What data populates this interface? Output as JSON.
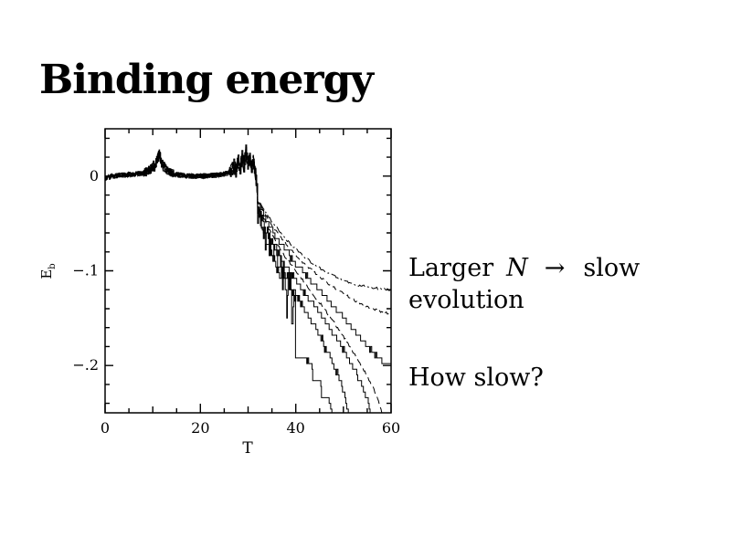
{
  "title": "Binding energy",
  "annotations": {
    "larger_n": {
      "pre": "Larger",
      "var": "N",
      "arrow": "→",
      "post": "slow",
      "line2": "evolution"
    },
    "how_slow": "How slow?"
  },
  "chart_data": {
    "type": "line",
    "title": "",
    "xlabel": "T",
    "ylabel": "Eb",
    "ylabel_main": "E",
    "ylabel_sub": "b",
    "xlim": [
      0,
      60
    ],
    "ylim": [
      -0.25,
      0.05
    ],
    "x_minor_step": 5,
    "x_ticks_labeled": [
      [
        0,
        "0"
      ],
      [
        20,
        "20"
      ],
      [
        40,
        "40"
      ],
      [
        60,
        "60"
      ]
    ],
    "y_minor_step": 0.02,
    "y_ticks_labeled": [
      [
        0,
        "0"
      ],
      [
        -0.1,
        "−.1"
      ],
      [
        -0.2,
        "−.2"
      ]
    ],
    "grid": false,
    "frame": "box-with-inward-ticks",
    "line_color": "#000000",
    "description": "Binding energy Eb vs time T for seven N-body runs; all runs flat near 0 with noise bumps peaking ~+0.022 at T≈11 and ~+0.027 at T≈29.5, then energy falls after T≈32; larger N falls more slowly.",
    "common": {
      "points": [
        [
          0,
          -0.002
        ],
        [
          1.5,
          0
        ],
        [
          3,
          0.001
        ],
        [
          4.5,
          0.0015
        ],
        [
          6,
          0.002
        ],
        [
          7.5,
          0.003
        ],
        [
          8.5,
          0.0045
        ],
        [
          9.5,
          0.0075
        ],
        [
          10.3,
          0.011
        ],
        [
          10.8,
          0.015
        ],
        [
          11.2,
          0.021
        ],
        [
          11.45,
          0.023
        ],
        [
          11.8,
          0.015
        ],
        [
          12.3,
          0.01
        ],
        [
          13,
          0.006
        ],
        [
          14,
          0.003
        ],
        [
          15,
          0.0015
        ],
        [
          16.5,
          0.0005
        ],
        [
          18,
          0
        ],
        [
          20,
          0
        ],
        [
          22,
          0.0005
        ],
        [
          24,
          0.0015
        ],
        [
          25.5,
          0.003
        ],
        [
          26.5,
          0.006
        ],
        [
          27,
          0.011
        ],
        [
          27.4,
          0.005
        ],
        [
          27.9,
          0.015
        ],
        [
          28.3,
          0.007
        ],
        [
          28.7,
          0.021
        ],
        [
          29.1,
          0.011
        ],
        [
          29.5,
          0.027
        ],
        [
          29.9,
          0.013
        ],
        [
          30.3,
          0.021
        ],
        [
          30.7,
          0.009
        ],
        [
          31.1,
          0.015
        ],
        [
          31.5,
          0.002
        ],
        [
          31.8,
          -0.008
        ]
      ],
      "noise": [
        [
          0,
          8,
          0.0025
        ],
        [
          8,
          10,
          0.0045
        ],
        [
          10,
          12.5,
          0.006
        ],
        [
          12.5,
          14.5,
          0.004
        ],
        [
          14.5,
          26,
          0.0025
        ],
        [
          26,
          31.8,
          0.0075
        ]
      ]
    },
    "series": [
      {
        "name": "run-1-smallest-N",
        "style": "solid",
        "dash": "",
        "steps": true,
        "seed": 1,
        "noise": [
          [
            32,
            39.7,
            0.015
          ],
          [
            40,
            48,
            0.002
          ]
        ],
        "points": [
          [
            32,
            -0.04
          ],
          [
            33,
            -0.062
          ],
          [
            34,
            -0.074
          ],
          [
            35,
            -0.086
          ],
          [
            36,
            -0.096
          ],
          [
            37,
            -0.104
          ],
          [
            37.8,
            -0.11
          ],
          [
            38.1,
            -0.145
          ],
          [
            38.4,
            -0.112
          ],
          [
            39,
            -0.116
          ],
          [
            39.3,
            -0.165
          ],
          [
            39.6,
            -0.118
          ],
          [
            39.75,
            -0.12
          ],
          [
            39.95,
            -0.19
          ],
          [
            41.5,
            -0.193
          ],
          [
            43.3,
            -0.196
          ],
          [
            43.55,
            -0.213
          ],
          [
            45.1,
            -0.215
          ],
          [
            45.4,
            -0.233
          ],
          [
            47.2,
            -0.237
          ],
          [
            47.45,
            -0.248
          ],
          [
            47.7,
            -0.262
          ]
        ]
      },
      {
        "name": "run-2",
        "style": "solid",
        "dash": "",
        "steps": true,
        "seed": 2,
        "noise": [
          [
            32,
            40,
            0.01
          ],
          [
            40,
            51.5,
            0.003
          ]
        ],
        "points": [
          [
            32,
            -0.036
          ],
          [
            34,
            -0.066
          ],
          [
            36,
            -0.09
          ],
          [
            38,
            -0.107
          ],
          [
            40,
            -0.124
          ],
          [
            42,
            -0.142
          ],
          [
            44,
            -0.16
          ],
          [
            45.5,
            -0.172
          ],
          [
            46.2,
            -0.184
          ],
          [
            47.4,
            -0.192
          ],
          [
            48.2,
            -0.207
          ],
          [
            49.3,
            -0.214
          ],
          [
            49.8,
            -0.228
          ],
          [
            50.5,
            -0.238
          ],
          [
            51.2,
            -0.262
          ]
        ]
      },
      {
        "name": "run-3",
        "style": "solid",
        "dash": "",
        "steps": true,
        "seed": 3,
        "noise": [
          [
            32,
            38,
            0.006
          ],
          [
            38,
            56,
            0.002
          ]
        ],
        "points": [
          [
            32,
            -0.032
          ],
          [
            34,
            -0.06
          ],
          [
            36,
            -0.08
          ],
          [
            38,
            -0.096
          ],
          [
            40,
            -0.11
          ],
          [
            42,
            -0.124
          ],
          [
            44,
            -0.138
          ],
          [
            46,
            -0.152
          ],
          [
            48,
            -0.167
          ],
          [
            50,
            -0.184
          ],
          [
            51.5,
            -0.198
          ],
          [
            53,
            -0.212
          ],
          [
            54,
            -0.224
          ],
          [
            55,
            -0.236
          ],
          [
            55.8,
            -0.262
          ]
        ]
      },
      {
        "name": "run-4",
        "style": "dashed",
        "dash": "8 4",
        "steps": false,
        "seed": 4,
        "noise": [
          [
            32,
            59,
            0.0015
          ]
        ],
        "points": [
          [
            32,
            -0.03
          ],
          [
            35,
            -0.062
          ],
          [
            38,
            -0.087
          ],
          [
            41,
            -0.107
          ],
          [
            44,
            -0.127
          ],
          [
            47,
            -0.147
          ],
          [
            49,
            -0.162
          ],
          [
            51,
            -0.177
          ],
          [
            53,
            -0.194
          ],
          [
            54.5,
            -0.207
          ],
          [
            56,
            -0.221
          ],
          [
            57,
            -0.233
          ],
          [
            57.9,
            -0.245
          ],
          [
            58.4,
            -0.262
          ]
        ]
      },
      {
        "name": "run-5",
        "style": "solid",
        "dash": "",
        "steps": true,
        "seed": 5,
        "noise": [
          [
            32,
            60,
            0.002
          ]
        ],
        "points": [
          [
            32,
            -0.028
          ],
          [
            35,
            -0.057
          ],
          [
            38,
            -0.08
          ],
          [
            41,
            -0.099
          ],
          [
            44,
            -0.115
          ],
          [
            47,
            -0.132
          ],
          [
            50,
            -0.15
          ],
          [
            52,
            -0.162
          ],
          [
            54,
            -0.174
          ],
          [
            55.5,
            -0.182
          ],
          [
            57,
            -0.19
          ],
          [
            58.5,
            -0.196
          ],
          [
            60,
            -0.201
          ]
        ]
      },
      {
        "name": "run-6",
        "style": "dashed",
        "dash": "6 4",
        "steps": false,
        "seed": 6,
        "noise": [
          [
            32,
            60,
            0.0012
          ]
        ],
        "points": [
          [
            32,
            -0.026
          ],
          [
            35,
            -0.052
          ],
          [
            38,
            -0.072
          ],
          [
            41,
            -0.089
          ],
          [
            44,
            -0.102
          ],
          [
            47,
            -0.114
          ],
          [
            50,
            -0.124
          ],
          [
            53,
            -0.133
          ],
          [
            56,
            -0.14
          ],
          [
            58,
            -0.143
          ],
          [
            60,
            -0.146
          ]
        ]
      },
      {
        "name": "run-7-largest-N",
        "style": "dot-dash",
        "dash": "10 3 2 3",
        "steps": false,
        "seed": 7,
        "noise": [
          [
            32,
            60,
            0.0012
          ]
        ],
        "points": [
          [
            32,
            -0.024
          ],
          [
            35,
            -0.048
          ],
          [
            38,
            -0.067
          ],
          [
            41,
            -0.082
          ],
          [
            44,
            -0.094
          ],
          [
            47,
            -0.103
          ],
          [
            50,
            -0.11
          ],
          [
            53,
            -0.115
          ],
          [
            56,
            -0.118
          ],
          [
            58,
            -0.119
          ],
          [
            60,
            -0.12
          ]
        ]
      }
    ]
  }
}
